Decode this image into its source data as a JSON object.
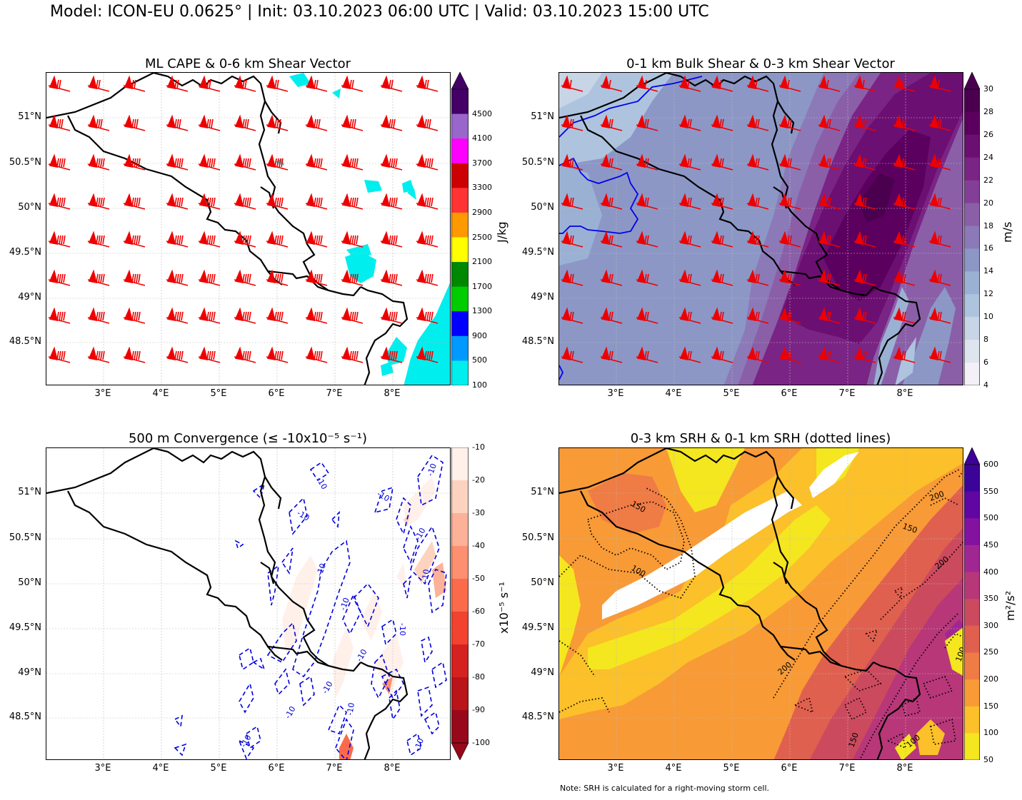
{
  "suptitle": "Model: ICON-EU 0.0625° | Init: 03.10.2023 06:00 UTC | Valid: 03.10.2023 15:00 UTC",
  "lat_labels": [
    "51°N",
    "50.5°N",
    "50°N",
    "49.5°N",
    "49°N",
    "48.5°N"
  ],
  "lon_labels": [
    "3°E",
    "4°E",
    "5°E",
    "6°E",
    "7°E",
    "8°E"
  ],
  "panels": {
    "cape": {
      "title": "ML CAPE & 0-6 km Shear Vector",
      "unit": "J/kg",
      "levels": [
        "100",
        "500",
        "900",
        "1300",
        "1700",
        "2100",
        "2500",
        "2900",
        "3300",
        "3700",
        "4100",
        "4500"
      ],
      "colors": [
        "#00eeee",
        "#0099ff",
        "#0000ff",
        "#00cc00",
        "#008800",
        "#ffff00",
        "#ff9900",
        "#ff3333",
        "#cc0000",
        "#ff00ff",
        "#9966cc",
        "#440066"
      ]
    },
    "shear": {
      "title": "0-1 km Bulk Shear & 0-3 km Shear Vector",
      "unit": "m/s",
      "levels": [
        "4",
        "6",
        "8",
        "10",
        "12",
        "14",
        "16",
        "18",
        "20",
        "22",
        "24",
        "26",
        "28",
        "30"
      ],
      "colors": [
        "#f3f0f7",
        "#dfe5ef",
        "#c7d5e6",
        "#aec4de",
        "#9bb1d4",
        "#8c97c6",
        "#8c7ab8",
        "#8a5fa8",
        "#833f98",
        "#7a2485",
        "#6c0f72",
        "#5b005f",
        "#4a004f"
      ]
    },
    "conv": {
      "title": "500 m Convergence (≤ -10x10⁻⁵ s⁻¹)",
      "unit": "x10⁻⁵ s⁻¹",
      "levels": [
        "-10",
        "-20",
        "-30",
        "-40",
        "-50",
        "-60",
        "-70",
        "-80",
        "-90",
        "-100"
      ],
      "colors": [
        "#fff1ea",
        "#fdd3c0",
        "#fcb299",
        "#fc9070",
        "#fb6b4b",
        "#f1432f",
        "#d52221",
        "#b81419",
        "#97091a"
      ],
      "contour_label": "-10"
    },
    "srh": {
      "title": "0-3 km SRH & 0-1 km SRH (dotted lines)",
      "unit": "m²/s²",
      "levels": [
        "50",
        "100",
        "150",
        "200",
        "250",
        "300",
        "350",
        "400",
        "450",
        "500",
        "550",
        "600"
      ],
      "colors": [
        "#f4e61f",
        "#fbc02a",
        "#f89a36",
        "#ef7b45",
        "#e0604f",
        "#cc4a5e",
        "#b73779",
        "#a02793",
        "#8412a0",
        "#6006a3",
        "#3c0398"
      ],
      "contour_labels": [
        "150",
        "100",
        "200",
        "150",
        "200",
        "200",
        "100",
        "150",
        "100"
      ]
    }
  },
  "note": "Note: SRH is calculated for a right-moving storm cell."
}
